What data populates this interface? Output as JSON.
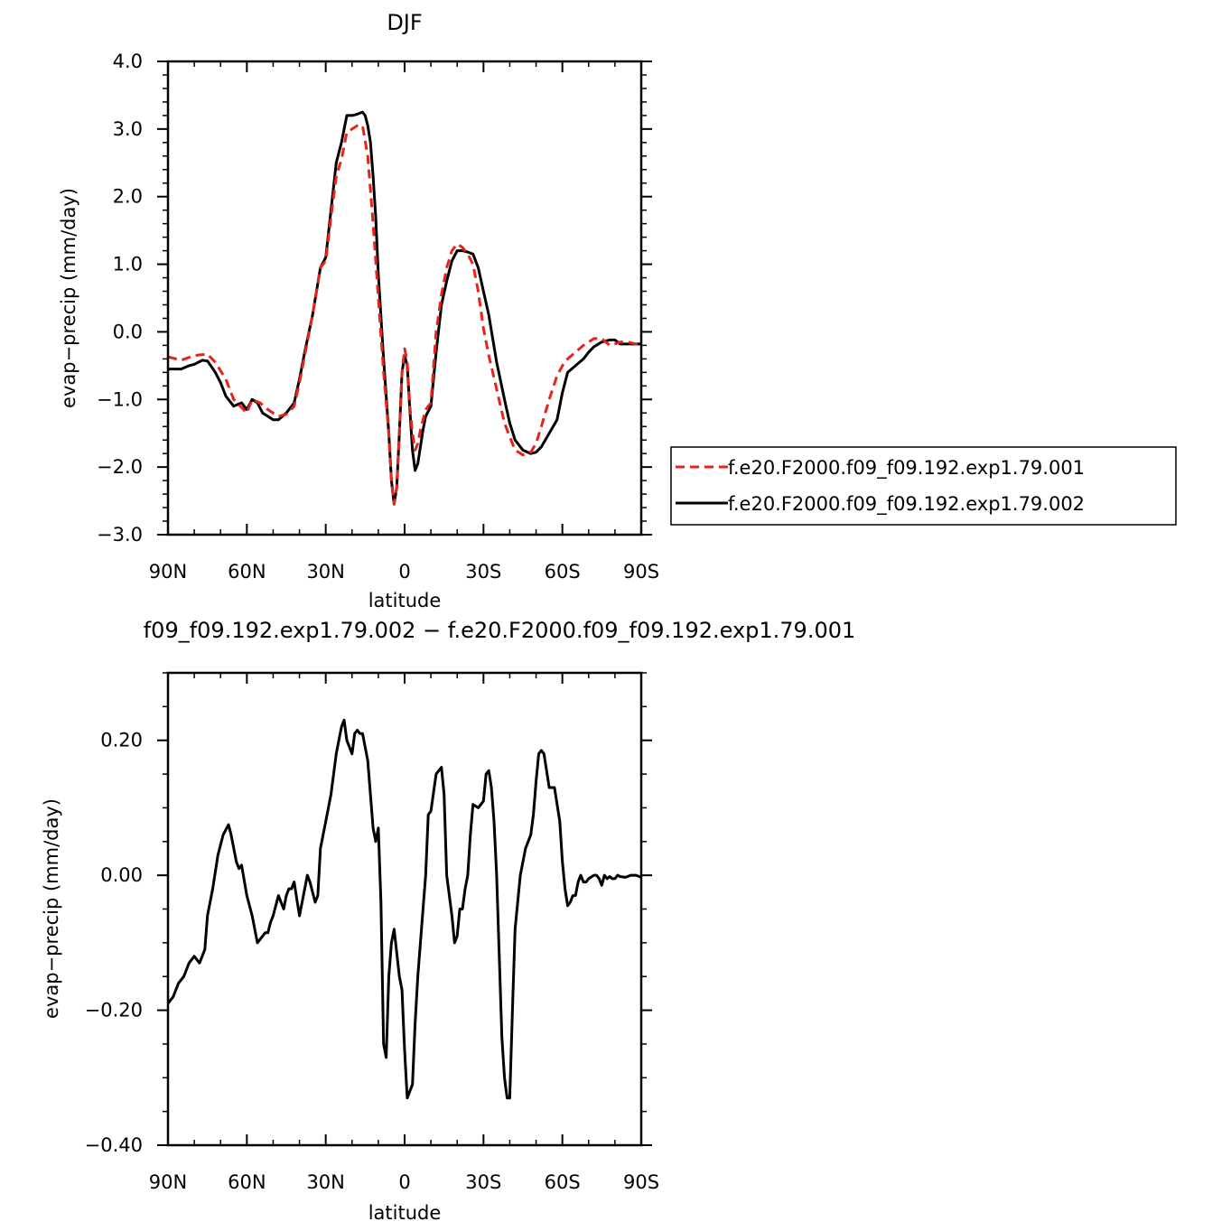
{
  "figure": {
    "top_title": "DJF",
    "bottom_title": "f09_f09.192.exp1.79.002 − f.e20.F2000.f09_f09.192.exp1.79.001"
  },
  "colors": {
    "series_001": "#e8231c",
    "series_002": "#000000",
    "axes": "#000000"
  },
  "chart_data": [
    {
      "type": "line",
      "title": "DJF",
      "xlabel": "latitude",
      "ylabel": "evap−precip (mm/day)",
      "xlim": [
        90,
        -90
      ],
      "ylim": [
        -3.0,
        4.0
      ],
      "xticks": [
        90,
        60,
        30,
        0,
        -30,
        -60,
        -90
      ],
      "xtick_labels": [
        "90N",
        "60N",
        "30N",
        "0",
        "30S",
        "60S",
        "90S"
      ],
      "yticks": [
        -3.0,
        -2.0,
        -1.0,
        0.0,
        1.0,
        2.0,
        3.0,
        4.0
      ],
      "ytick_labels": [
        "−3.0",
        "−2.0",
        "−1.0",
        "0.0",
        "1.0",
        "2.0",
        "3.0",
        "4.0"
      ],
      "grid": false,
      "legend_position": "right",
      "series": [
        {
          "name": "f.e20.F2000.f09_f09.192.exp1.79.001",
          "style": "dashed",
          "color": "#e8231c",
          "x": [
            90,
            85,
            80,
            75,
            72,
            68,
            65,
            62,
            60,
            58,
            55,
            52,
            50,
            48,
            45,
            42,
            40,
            38,
            35,
            32,
            30,
            28,
            26,
            24,
            22,
            20,
            18,
            16,
            14,
            12,
            10,
            8,
            6,
            5,
            4,
            3,
            2,
            1,
            0,
            -1,
            -2,
            -3,
            -4,
            -5,
            -6,
            -7,
            -8,
            -10,
            -12,
            -14,
            -16,
            -18,
            -20,
            -22,
            -24,
            -26,
            -28,
            -30,
            -32,
            -35,
            -38,
            -40,
            -42,
            -45,
            -48,
            -50,
            -52,
            -55,
            -58,
            -60,
            -62,
            -65,
            -68,
            -70,
            -72,
            -75,
            -78,
            -80,
            -82,
            -85,
            -88,
            -90
          ],
          "y": [
            -0.37,
            -0.42,
            -0.35,
            -0.33,
            -0.45,
            -0.7,
            -1.0,
            -1.12,
            -1.2,
            -1.0,
            -1.05,
            -1.15,
            -1.2,
            -1.25,
            -1.22,
            -1.1,
            -0.75,
            -0.35,
            0.25,
            0.95,
            1.05,
            1.7,
            2.3,
            2.55,
            2.95,
            3.0,
            3.05,
            3.05,
            2.6,
            1.6,
            0.5,
            -0.6,
            -1.5,
            -2.2,
            -2.55,
            -2.3,
            -1.5,
            -0.6,
            -0.25,
            -0.45,
            -1.1,
            -1.5,
            -1.75,
            -1.65,
            -1.45,
            -1.3,
            -1.15,
            -1.05,
            0.0,
            0.55,
            0.95,
            1.2,
            1.3,
            1.25,
            1.15,
            1.0,
            0.6,
            0.05,
            -0.35,
            -0.85,
            -1.35,
            -1.55,
            -1.75,
            -1.82,
            -1.78,
            -1.65,
            -1.4,
            -1.0,
            -0.65,
            -0.5,
            -0.4,
            -0.3,
            -0.2,
            -0.15,
            -0.1,
            -0.1,
            -0.2,
            -0.18,
            -0.15,
            -0.15,
            -0.18,
            -0.18
          ]
        },
        {
          "name": "f.e20.F2000.f09_f09.192.exp1.79.002",
          "style": "solid",
          "color": "#000000",
          "x": [
            90,
            85,
            82,
            80,
            77,
            75,
            72,
            70,
            68,
            65,
            62,
            60,
            58,
            56,
            54,
            52,
            50,
            48,
            45,
            42,
            40,
            38,
            35,
            32,
            30,
            28,
            26,
            24,
            22,
            21,
            20,
            18,
            16,
            15,
            14,
            13,
            12,
            11,
            10,
            8,
            6,
            5,
            4,
            3,
            2,
            1,
            0,
            -1,
            -2,
            -3,
            -4,
            -5,
            -6,
            -7,
            -8,
            -10,
            -12,
            -14,
            -16,
            -18,
            -20,
            -22,
            -24,
            -26,
            -28,
            -30,
            -32,
            -35,
            -38,
            -40,
            -42,
            -45,
            -48,
            -50,
            -52,
            -55,
            -58,
            -60,
            -62,
            -65,
            -68,
            -70,
            -72,
            -75,
            -78,
            -80,
            -82,
            -85,
            -88,
            -90
          ],
          "y": [
            -0.55,
            -0.55,
            -0.5,
            -0.48,
            -0.42,
            -0.43,
            -0.6,
            -0.75,
            -0.95,
            -1.1,
            -1.05,
            -1.15,
            -1.0,
            -1.05,
            -1.2,
            -1.25,
            -1.3,
            -1.3,
            -1.2,
            -1.05,
            -0.7,
            -0.3,
            0.25,
            0.95,
            1.1,
            1.8,
            2.5,
            2.8,
            3.2,
            3.2,
            3.2,
            3.22,
            3.25,
            3.2,
            3.05,
            2.8,
            2.3,
            1.7,
            0.85,
            -0.4,
            -1.5,
            -2.2,
            -2.55,
            -2.3,
            -1.5,
            -0.6,
            -0.35,
            -0.5,
            -1.15,
            -1.75,
            -2.05,
            -1.95,
            -1.7,
            -1.45,
            -1.25,
            -1.1,
            -0.3,
            0.4,
            0.75,
            1.05,
            1.2,
            1.2,
            1.18,
            1.15,
            0.95,
            0.6,
            0.25,
            -0.45,
            -1.0,
            -1.35,
            -1.6,
            -1.75,
            -1.8,
            -1.78,
            -1.7,
            -1.5,
            -1.3,
            -0.9,
            -0.6,
            -0.5,
            -0.4,
            -0.3,
            -0.22,
            -0.15,
            -0.12,
            -0.12,
            -0.18,
            -0.18,
            -0.18,
            -0.18
          ]
        }
      ]
    },
    {
      "type": "line",
      "title": "f09_f09.192.exp1.79.002 − f.e20.F2000.f09_f09.192.exp1.79.001",
      "xlabel": "latitude",
      "ylabel": "evap−precip (mm/day)",
      "xlim": [
        90,
        -90
      ],
      "ylim": [
        -0.4,
        0.3
      ],
      "xticks": [
        90,
        60,
        30,
        0,
        -30,
        -60,
        -90
      ],
      "xtick_labels": [
        "90N",
        "60N",
        "30N",
        "0",
        "30S",
        "60S",
        "90S"
      ],
      "yticks": [
        -0.4,
        -0.2,
        0.0,
        0.2
      ],
      "ytick_labels": [
        "−0.40",
        "−0.20",
        "0.00",
        "0.20"
      ],
      "grid": false,
      "series": [
        {
          "color": "#000000",
          "x": [
            90,
            88,
            86,
            84,
            82,
            80,
            78,
            76,
            75,
            73,
            71,
            69,
            67,
            66,
            64,
            63,
            62,
            60,
            58,
            56,
            54,
            53,
            52,
            51,
            50,
            48,
            46,
            45,
            44,
            43,
            42,
            41,
            40,
            38,
            37,
            36,
            34,
            33,
            32,
            30,
            28,
            27,
            26,
            25,
            24,
            23,
            22,
            21,
            20,
            19,
            18,
            17,
            16,
            14,
            12,
            11,
            10,
            9,
            8,
            7,
            6,
            5,
            4,
            2,
            1,
            0,
            -1,
            -2,
            -3,
            -4,
            -5,
            -6,
            -7,
            -8,
            -9,
            -10,
            -12,
            -14,
            -15,
            -16,
            -17,
            -18,
            -19,
            -20,
            -21,
            -22,
            -23,
            -24,
            -25,
            -26,
            -28,
            -30,
            -31,
            -32,
            -33,
            -34,
            -35,
            -36,
            -37,
            -38,
            -39,
            -40,
            -41,
            -42,
            -44,
            -46,
            -48,
            -49,
            -50,
            -51,
            -52,
            -53,
            -55,
            -57,
            -59,
            -60,
            -61,
            -62,
            -63,
            -64,
            -65,
            -66,
            -67,
            -68,
            -69,
            -70,
            -72,
            -73,
            -74,
            -75,
            -76,
            -77,
            -78,
            -79,
            -80,
            -81,
            -82,
            -84,
            -86,
            -88,
            -90
          ],
          "y": [
            -0.19,
            -0.18,
            -0.16,
            -0.15,
            -0.13,
            -0.12,
            -0.13,
            -0.11,
            -0.06,
            -0.02,
            0.03,
            0.06,
            0.075,
            0.06,
            0.02,
            0.01,
            0.015,
            -0.03,
            -0.06,
            -0.1,
            -0.09,
            -0.085,
            -0.085,
            -0.07,
            -0.06,
            -0.03,
            -0.05,
            -0.03,
            -0.02,
            -0.02,
            -0.01,
            -0.035,
            -0.06,
            -0.02,
            0.0,
            -0.01,
            -0.04,
            -0.03,
            0.04,
            0.08,
            0.12,
            0.15,
            0.18,
            0.2,
            0.22,
            0.23,
            0.2,
            0.19,
            0.18,
            0.21,
            0.215,
            0.21,
            0.21,
            0.17,
            0.07,
            0.05,
            0.07,
            -0.04,
            -0.25,
            -0.27,
            -0.15,
            -0.1,
            -0.08,
            -0.15,
            -0.17,
            -0.26,
            -0.33,
            -0.32,
            -0.31,
            -0.22,
            -0.15,
            -0.1,
            -0.05,
            0.0,
            0.09,
            0.095,
            0.15,
            0.16,
            0.12,
            0.0,
            -0.03,
            -0.06,
            -0.1,
            -0.09,
            -0.05,
            -0.05,
            -0.02,
            0.0,
            0.06,
            0.105,
            0.1,
            0.11,
            0.15,
            0.155,
            0.13,
            0.08,
            0.0,
            -0.12,
            -0.24,
            -0.3,
            -0.33,
            -0.33,
            -0.2,
            -0.08,
            0.0,
            0.04,
            0.06,
            0.09,
            0.14,
            0.18,
            0.185,
            0.18,
            0.13,
            0.13,
            0.08,
            0.02,
            -0.02,
            -0.045,
            -0.04,
            -0.03,
            -0.03,
            -0.01,
            0.0,
            -0.01,
            -0.01,
            -0.005,
            0.0,
            0.0,
            -0.005,
            -0.015,
            0.0,
            -0.005,
            -0.002,
            -0.005,
            -0.005,
            0.0,
            -0.002,
            -0.003,
            0.0,
            0.0,
            -0.003
          ]
        }
      ]
    }
  ]
}
